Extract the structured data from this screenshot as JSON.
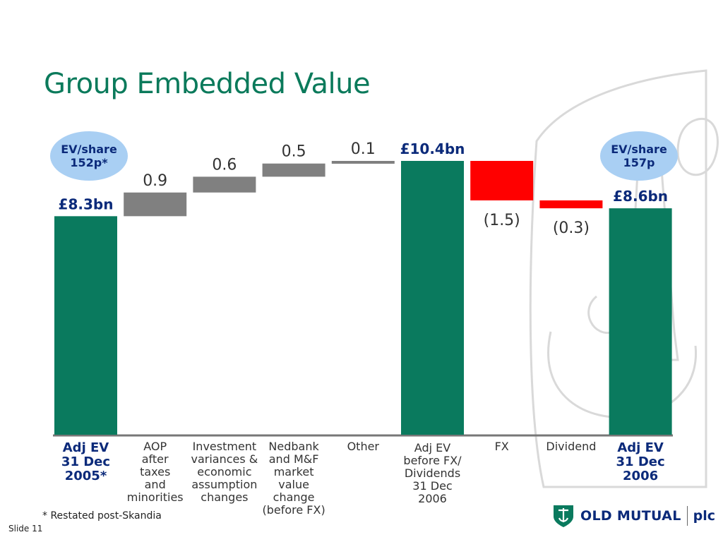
{
  "slide": {
    "title": "Group Embedded Value",
    "footnote": "* Restated post-Skandia",
    "slide_number": "Slide 11"
  },
  "badges": {
    "left": {
      "line1": "EV/share",
      "line2": "152p*"
    },
    "right": {
      "line1": "EV/share",
      "line2": "157p"
    }
  },
  "logo": {
    "name": "OLD MUTUAL",
    "suffix": "plc"
  },
  "colors": {
    "total": "#0a7a5e",
    "increase": "#808080",
    "decrease": "#ff0000",
    "title": "#0b7a5b",
    "badge": "#a9cff3",
    "axis": "#777777"
  },
  "chart_data": {
    "type": "waterfall",
    "unit": "£bn",
    "ylim": [
      0,
      11.6
    ],
    "steps": [
      {
        "category": "Adj EV\n31 Dec\n2005*",
        "kind": "total",
        "value": 8.3,
        "label": "£8.3bn",
        "emphasis": true
      },
      {
        "category": "AOP\nafter\ntaxes\nand\nminorities",
        "kind": "delta",
        "value": 0.9,
        "label": "0.9"
      },
      {
        "category": "Investment\nvariances &\neconomic\nassumption\nchanges",
        "kind": "delta",
        "value": 0.6,
        "label": "0.6"
      },
      {
        "category": "Nedbank\nand M&F\nmarket\nvalue\nchange\n(before FX)",
        "kind": "delta",
        "value": 0.5,
        "label": "0.5"
      },
      {
        "category": "Other",
        "kind": "delta",
        "value": 0.1,
        "label": "0.1"
      },
      {
        "category": "Adj EV\nbefore FX/\nDividends\n31 Dec\n2006",
        "kind": "total",
        "value": 10.4,
        "label": "£10.4bn"
      },
      {
        "category": "FX",
        "kind": "delta",
        "value": -1.5,
        "label": "(1.5)"
      },
      {
        "category": "Dividend",
        "kind": "delta",
        "value": -0.3,
        "label": "(0.3)"
      },
      {
        "category": "Adj EV\n31 Dec\n2006",
        "kind": "total",
        "value": 8.6,
        "label": "£8.6bn",
        "emphasis": true
      }
    ]
  }
}
